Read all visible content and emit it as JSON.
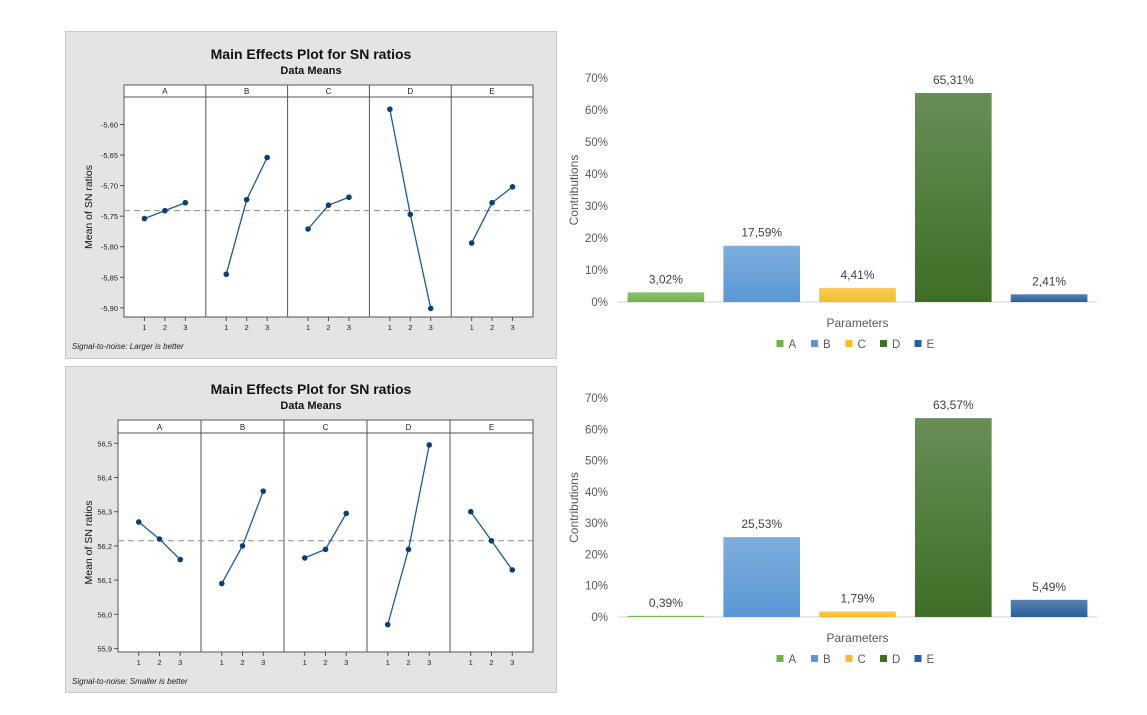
{
  "chart_data": [
    {
      "type": "line",
      "title": "Main Effects Plot for SN ratios",
      "subtitle": "Data Means",
      "ylabel": "Mean of SN ratios",
      "footnote": "Signal-to-noise: Larger is better",
      "facets": [
        "A",
        "B",
        "C",
        "D",
        "E"
      ],
      "x": [
        "1",
        "2",
        "3"
      ],
      "series": [
        {
          "name": "A",
          "values": [
            -5.754,
            -5.741,
            -5.728
          ]
        },
        {
          "name": "B",
          "values": [
            -5.845,
            -5.723,
            -5.654
          ]
        },
        {
          "name": "C",
          "values": [
            -5.771,
            -5.732,
            -5.719
          ]
        },
        {
          "name": "D",
          "values": [
            -5.575,
            -5.747,
            -5.901
          ]
        },
        {
          "name": "E",
          "values": [
            -5.794,
            -5.728,
            -5.702
          ]
        }
      ],
      "mean_line": -5.741,
      "ylim": [
        -5.915,
        -5.555
      ],
      "yticks": [
        -5.9,
        -5.85,
        -5.8,
        -5.75,
        -5.7,
        -5.65,
        -5.6
      ],
      "ytick_labels": [
        "-5,90",
        "-5,85",
        "-5,80",
        "-5,75",
        "-5,70",
        "-5,65",
        "-5,60"
      ]
    },
    {
      "type": "bar",
      "xlabel": "Parameters",
      "ylabel": "Contributions",
      "categories": [
        "A",
        "B",
        "C",
        "D",
        "E"
      ],
      "values": [
        3.02,
        17.59,
        4.41,
        65.31,
        2.41
      ],
      "labels": [
        "3,02%",
        "17,59%",
        "4,41%",
        "65,31%",
        "2,41%"
      ],
      "colors": [
        "#6fb14a",
        "#5a97d4",
        "#f4bd2a",
        "#3e6e26",
        "#2a5f99"
      ],
      "ylim": [
        0,
        70
      ],
      "yticks": [
        0,
        10,
        20,
        30,
        40,
        50,
        60,
        70
      ],
      "ytick_labels": [
        "0%",
        "10%",
        "20%",
        "30%",
        "40%",
        "50%",
        "60%",
        "70%"
      ],
      "legend": "bottom"
    },
    {
      "type": "line",
      "title": "Main Effects Plot for SN ratios",
      "subtitle": "Data Means",
      "ylabel": "Mean of SN ratios",
      "footnote": "Signal-to-noise: Smaller is better",
      "facets": [
        "A",
        "B",
        "C",
        "D",
        "E"
      ],
      "x": [
        "1",
        "2",
        "3"
      ],
      "series": [
        {
          "name": "A",
          "values": [
            56.27,
            56.22,
            56.16
          ]
        },
        {
          "name": "B",
          "values": [
            56.09,
            56.2,
            56.36
          ]
        },
        {
          "name": "C",
          "values": [
            56.165,
            56.19,
            56.295
          ]
        },
        {
          "name": "D",
          "values": [
            55.97,
            56.19,
            56.495
          ]
        },
        {
          "name": "E",
          "values": [
            56.3,
            56.215,
            56.13
          ]
        }
      ],
      "mean_line": 56.215,
      "ylim": [
        55.89,
        56.53
      ],
      "yticks": [
        55.9,
        56.0,
        56.1,
        56.2,
        56.3,
        56.4,
        56.5
      ],
      "ytick_labels": [
        "55,9",
        "56,0",
        "56,1",
        "56,2",
        "56,3",
        "56,4",
        "56,5"
      ]
    },
    {
      "type": "bar",
      "xlabel": "Parameters",
      "ylabel": "Contributions",
      "categories": [
        "A",
        "B",
        "C",
        "D",
        "E"
      ],
      "values": [
        0.39,
        25.53,
        1.79,
        63.57,
        5.49
      ],
      "labels": [
        "0,39%",
        "25,53%",
        "1,79%",
        "63,57%",
        "5,49%"
      ],
      "colors": [
        "#6fb14a",
        "#5a97d4",
        "#f4bd2a",
        "#3e6e26",
        "#2a5f99"
      ],
      "ylim": [
        0,
        70
      ],
      "yticks": [
        0,
        10,
        20,
        30,
        40,
        50,
        60,
        70
      ],
      "ytick_labels": [
        "0%",
        "10%",
        "20%",
        "30%",
        "40%",
        "50%",
        "60%",
        "70%"
      ],
      "legend": "bottom"
    }
  ]
}
